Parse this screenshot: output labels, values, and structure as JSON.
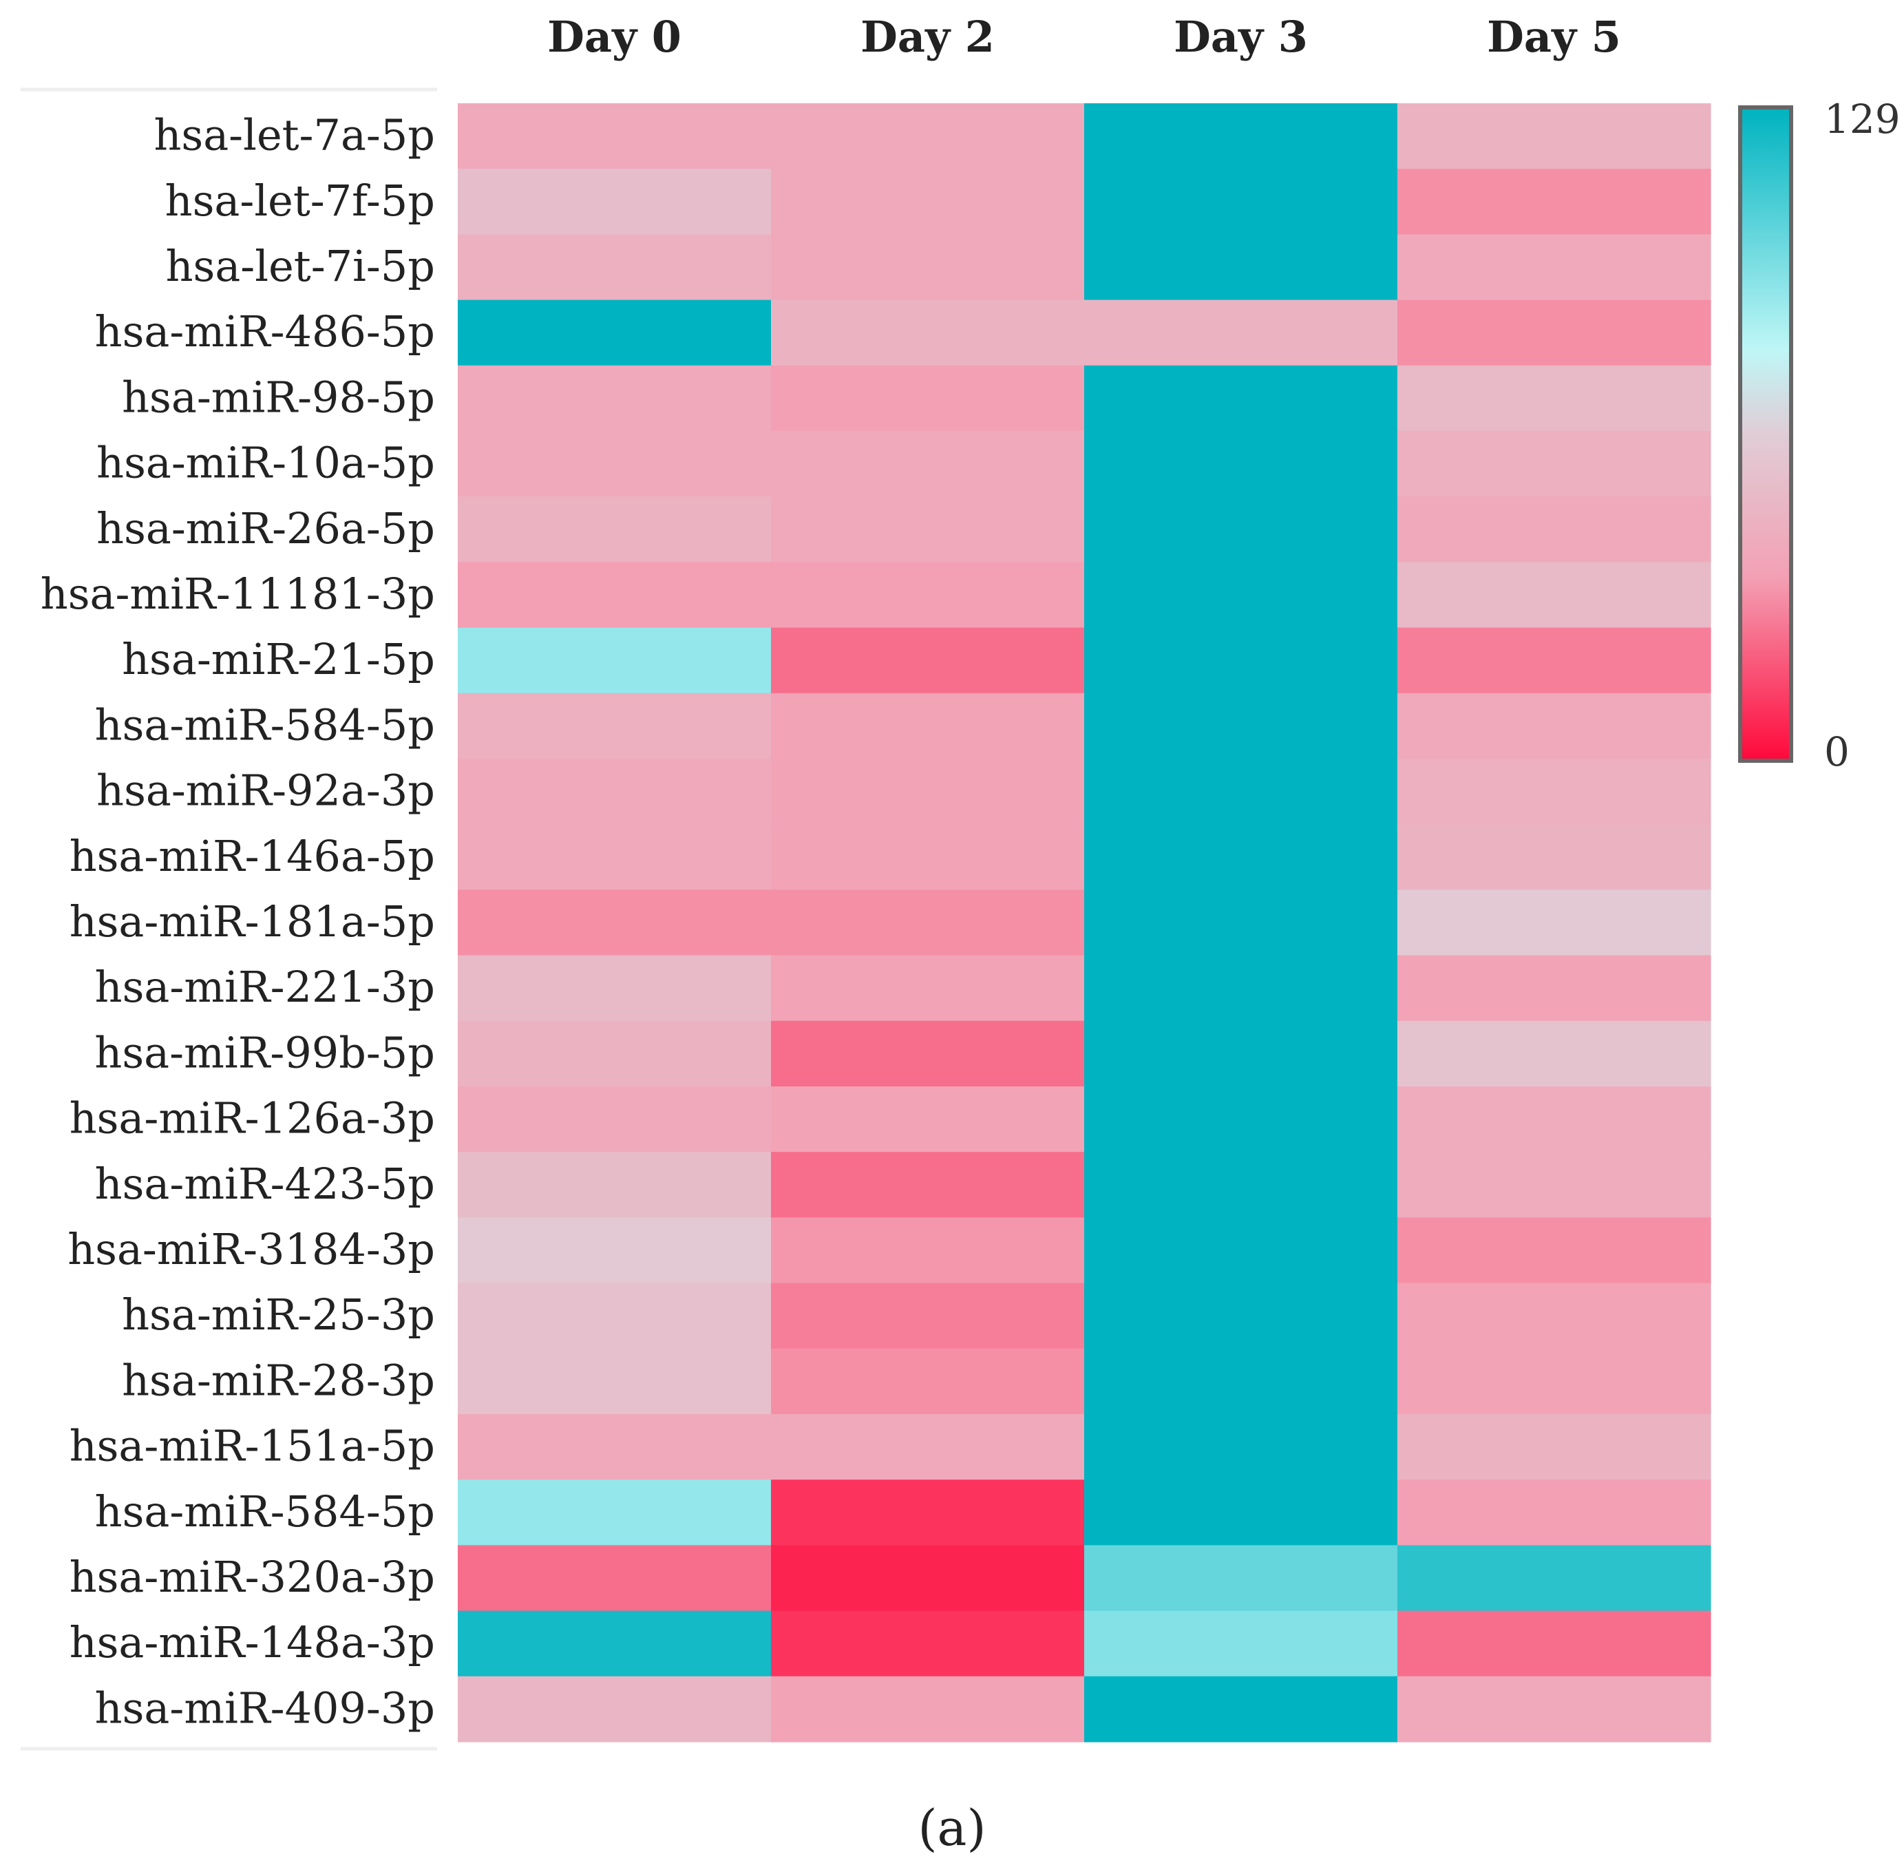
{
  "chart_data": {
    "type": "heatmap",
    "title": "",
    "caption": "(a)",
    "columns": [
      "Day 0",
      "Day 2",
      "Day 3",
      "Day 5"
    ],
    "rows": [
      "hsa-let-7a-5p",
      "hsa-let-7f-5p",
      "hsa-let-7i-5p",
      "hsa-miR-486-5p",
      "hsa-miR-98-5p",
      "hsa-miR-10a-5p",
      "hsa-miR-26a-5p",
      "hsa-miR-11181-3p",
      "hsa-miR-21-5p",
      "hsa-miR-584-5p",
      "hsa-miR-92a-3p",
      "hsa-miR-146a-5p",
      "hsa-miR-181a-5p",
      "hsa-miR-221-3p",
      "hsa-miR-99b-5p",
      "hsa-miR-126a-3p",
      "hsa-miR-423-5p",
      "hsa-miR-3184-3p",
      "hsa-miR-25-3p",
      "hsa-miR-28-3p",
      "hsa-miR-151a-5p",
      "hsa-miR-584-5p",
      "hsa-miR-320a-3p",
      "hsa-miR-148a-3p",
      "hsa-miR-409-3p"
    ],
    "values": [
      [
        42,
        42,
        129,
        48
      ],
      [
        55,
        42,
        129,
        32
      ],
      [
        46,
        42,
        129,
        42
      ],
      [
        129,
        48,
        48,
        32
      ],
      [
        42,
        36,
        129,
        52
      ],
      [
        42,
        42,
        129,
        46
      ],
      [
        48,
        42,
        129,
        42
      ],
      [
        36,
        36,
        129,
        52
      ],
      [
        92,
        24,
        129,
        28
      ],
      [
        46,
        38,
        129,
        42
      ],
      [
        42,
        38,
        129,
        46
      ],
      [
        42,
        38,
        129,
        48
      ],
      [
        32,
        32,
        129,
        62
      ],
      [
        52,
        38,
        129,
        38
      ],
      [
        48,
        24,
        129,
        58
      ],
      [
        42,
        38,
        129,
        44
      ],
      [
        54,
        24,
        129,
        44
      ],
      [
        62,
        34,
        129,
        32
      ],
      [
        56,
        28,
        129,
        38
      ],
      [
        56,
        32,
        129,
        38
      ],
      [
        42,
        42,
        129,
        48
      ],
      [
        92,
        10,
        129,
        36
      ],
      [
        24,
        6,
        104,
        118
      ],
      [
        124,
        10,
        96,
        24
      ],
      [
        50,
        38,
        129,
        42
      ]
    ],
    "colorbar": {
      "min": 0,
      "max": 129,
      "min_label": "0",
      "max_label": "129",
      "colors": {
        "low": "#ff0a3c",
        "low_mid": "#f3a0b4",
        "mid": "#e0cdd6",
        "mid_high": "#bff6f6",
        "high": "#00b3c0"
      }
    }
  }
}
